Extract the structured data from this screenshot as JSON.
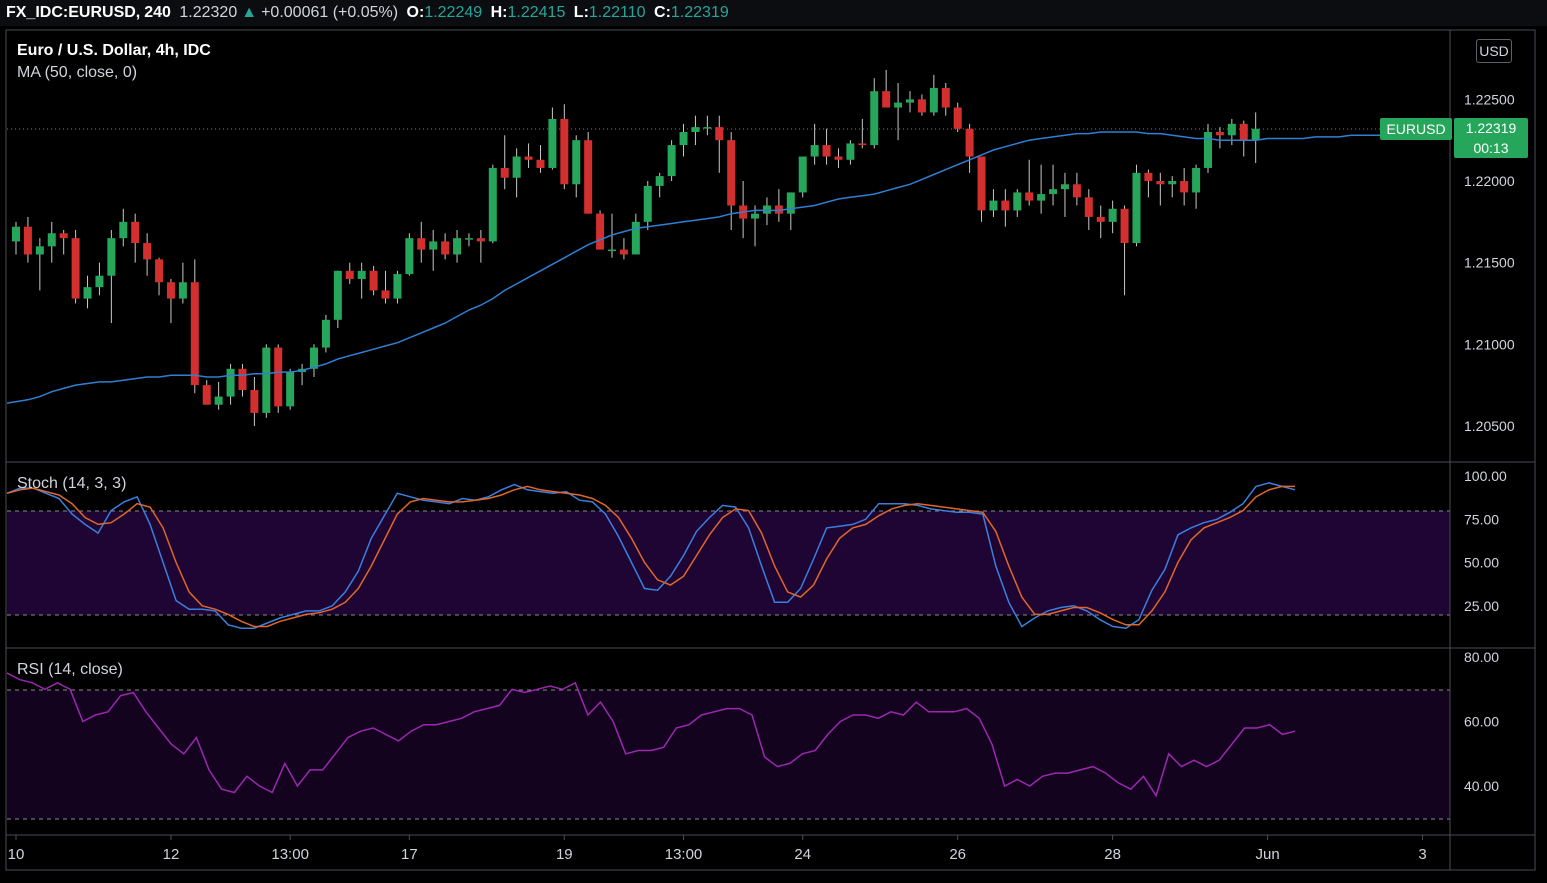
{
  "header": {
    "symbol": "FX_IDC:EURUSD,",
    "interval": "240",
    "last": "1.22320",
    "change_arrow": "▲",
    "change": "+0.00061 (+0.05%)",
    "o_label": "O:",
    "o": "1.22249",
    "h_label": "H:",
    "h": "1.22415",
    "l_label": "L:",
    "l": "1.22110",
    "c_label": "C:",
    "c": "1.22319"
  },
  "legend": {
    "title": "Euro / U.S. Dollar, 4h, IDC",
    "ma": "MA (50, close, 0)",
    "stoch": "Stoch (14, 3, 3)",
    "rsi": "RSI (14, close)"
  },
  "currency_badge": "USD",
  "price_tag": {
    "name": "EURUSD",
    "price": "1.22319",
    "countdown": "00:13"
  },
  "colors": {
    "up": "#26a65a",
    "down": "#d32f2f",
    "ma": "#2f7fd4",
    "stoch_k": "#3a7fe0",
    "stoch_d": "#e0662a",
    "rsi": "#9c27b0",
    "band": "#1f0533"
  },
  "chart_data": [
    {
      "type": "candlestick",
      "title": "Euro / U.S. Dollar, 4h, IDC",
      "ylim": [
        1.2025,
        1.2705
      ],
      "y_ticks": [
        "1.22500",
        "1.22000",
        "1.21500",
        "1.21000",
        "1.20500"
      ],
      "x_ticks": [
        "10",
        "12",
        "13:00",
        "17",
        "19",
        "13:00",
        "24",
        "26",
        "28",
        "Jun",
        "3"
      ],
      "x_tick_index": [
        0,
        13,
        23,
        33,
        46,
        56,
        66,
        79,
        92,
        105,
        118
      ],
      "candles": [
        [
          1.2163,
          1.2175,
          1.2155,
          1.2172
        ],
        [
          1.2172,
          1.2178,
          1.215,
          1.2155
        ],
        [
          1.2155,
          1.2165,
          1.2133,
          1.216
        ],
        [
          1.216,
          1.2175,
          1.215,
          1.2168
        ],
        [
          1.2168,
          1.217,
          1.2155,
          1.2165
        ],
        [
          1.2165,
          1.217,
          1.2125,
          1.2128
        ],
        [
          1.2128,
          1.2142,
          1.2122,
          1.2135
        ],
        [
          1.2135,
          1.215,
          1.213,
          1.2142
        ],
        [
          1.2142,
          1.217,
          1.2113,
          1.2165
        ],
        [
          1.2165,
          1.2183,
          1.216,
          1.2175
        ],
        [
          1.2175,
          1.218,
          1.215,
          1.2162
        ],
        [
          1.2162,
          1.2168,
          1.2142,
          1.2152
        ],
        [
          1.2152,
          1.2153,
          1.213,
          1.2138
        ],
        [
          1.2138,
          1.214,
          1.2113,
          1.2128
        ],
        [
          1.2128,
          1.215,
          1.2125,
          1.2138
        ],
        [
          1.2138,
          1.2152,
          1.207,
          1.2075
        ],
        [
          1.2075,
          1.2078,
          1.2065,
          1.2063
        ],
        [
          1.2063,
          1.2077,
          1.206,
          1.2068
        ],
        [
          1.2068,
          1.2088,
          1.2063,
          1.2085
        ],
        [
          1.2085,
          1.2088,
          1.2068,
          1.2072
        ],
        [
          1.2072,
          1.208,
          1.205,
          1.2058
        ],
        [
          1.2058,
          1.21,
          1.2055,
          1.2098
        ],
        [
          1.2098,
          1.21,
          1.2058,
          1.2062
        ],
        [
          1.2062,
          1.2085,
          1.206,
          1.2083
        ],
        [
          1.2083,
          1.2088,
          1.2075,
          1.2085
        ],
        [
          1.2085,
          1.21,
          1.208,
          1.2098
        ],
        [
          1.2098,
          1.2118,
          1.2095,
          1.2115
        ],
        [
          1.2115,
          1.2145,
          1.211,
          1.2145
        ],
        [
          1.2145,
          1.215,
          1.2137,
          1.214
        ],
        [
          1.214,
          1.215,
          1.2128,
          1.2145
        ],
        [
          1.2145,
          1.2148,
          1.213,
          1.2133
        ],
        [
          1.2133,
          1.2145,
          1.2125,
          1.2128
        ],
        [
          1.2128,
          1.2145,
          1.2125,
          1.2143
        ],
        [
          1.2143,
          1.2168,
          1.2142,
          1.2165
        ],
        [
          1.2165,
          1.2175,
          1.215,
          1.2158
        ],
        [
          1.2158,
          1.217,
          1.2145,
          1.2163
        ],
        [
          1.2163,
          1.2168,
          1.2152,
          1.2155
        ],
        [
          1.2155,
          1.217,
          1.215,
          1.2165
        ],
        [
          1.2165,
          1.2168,
          1.216,
          1.2165
        ],
        [
          1.2165,
          1.217,
          1.215,
          1.2163
        ],
        [
          1.2163,
          1.221,
          1.2162,
          1.2208
        ],
        [
          1.2208,
          1.2228,
          1.2195,
          1.2202
        ],
        [
          1.2202,
          1.222,
          1.219,
          1.2215
        ],
        [
          1.2215,
          1.2223,
          1.2208,
          1.2213
        ],
        [
          1.2213,
          1.2222,
          1.2205,
          1.2208
        ],
        [
          1.2208,
          1.2245,
          1.2207,
          1.2238
        ],
        [
          1.2238,
          1.2247,
          1.2195,
          1.2198
        ],
        [
          1.2198,
          1.2228,
          1.219,
          1.2225
        ],
        [
          1.2225,
          1.223,
          1.218,
          1.218
        ],
        [
          1.218,
          1.2182,
          1.2158,
          1.2158
        ],
        [
          1.2158,
          1.218,
          1.2153,
          1.2158
        ],
        [
          1.2158,
          1.2165,
          1.2152,
          1.2155
        ],
        [
          1.2155,
          1.218,
          1.2155,
          1.2175
        ],
        [
          1.2175,
          1.22,
          1.217,
          1.2197
        ],
        [
          1.2197,
          1.2205,
          1.219,
          1.2203
        ],
        [
          1.2203,
          1.2225,
          1.22,
          1.2222
        ],
        [
          1.2222,
          1.2235,
          1.2215,
          1.223
        ],
        [
          1.223,
          1.224,
          1.2222,
          1.2233
        ],
        [
          1.2233,
          1.224,
          1.2228,
          1.2233
        ],
        [
          1.2233,
          1.224,
          1.2205,
          1.2225
        ],
        [
          1.2225,
          1.223,
          1.217,
          1.2185
        ],
        [
          1.2185,
          1.22,
          1.2165,
          1.2177
        ],
        [
          1.2177,
          1.2185,
          1.216,
          1.218
        ],
        [
          1.218,
          1.219,
          1.2173,
          1.2185
        ],
        [
          1.2185,
          1.2195,
          1.2175,
          1.218
        ],
        [
          1.218,
          1.2193,
          1.217,
          1.2193
        ],
        [
          1.2193,
          1.2215,
          1.219,
          1.2215
        ],
        [
          1.2215,
          1.2235,
          1.221,
          1.2222
        ],
        [
          1.2222,
          1.2232,
          1.221,
          1.2215
        ],
        [
          1.2215,
          1.222,
          1.2208,
          1.2213
        ],
        [
          1.2213,
          1.2225,
          1.221,
          1.2223
        ],
        [
          1.2223,
          1.2238,
          1.222,
          1.2222
        ],
        [
          1.2222,
          1.2263,
          1.222,
          1.2255
        ],
        [
          1.2255,
          1.2268,
          1.2245,
          1.2245
        ],
        [
          1.2245,
          1.226,
          1.2225,
          1.2248
        ],
        [
          1.2248,
          1.2255,
          1.2242,
          1.225
        ],
        [
          1.225,
          1.2253,
          1.224,
          1.2242
        ],
        [
          1.2242,
          1.2265,
          1.224,
          1.2257
        ],
        [
          1.2257,
          1.226,
          1.224,
          1.2245
        ],
        [
          1.2245,
          1.2248,
          1.223,
          1.2232
        ],
        [
          1.2232,
          1.2235,
          1.2205,
          1.2215
        ],
        [
          1.2215,
          1.2215,
          1.2175,
          1.2182
        ],
        [
          1.2182,
          1.2195,
          1.2178,
          1.2188
        ],
        [
          1.2188,
          1.2195,
          1.2172,
          1.2182
        ],
        [
          1.2182,
          1.2195,
          1.2178,
          1.2193
        ],
        [
          1.2193,
          1.2213,
          1.2185,
          1.2188
        ],
        [
          1.2188,
          1.221,
          1.218,
          1.2192
        ],
        [
          1.2192,
          1.221,
          1.2185,
          1.2195
        ],
        [
          1.2195,
          1.2205,
          1.2178,
          1.2198
        ],
        [
          1.2198,
          1.2205,
          1.2185,
          1.219
        ],
        [
          1.219,
          1.2195,
          1.217,
          1.2178
        ],
        [
          1.2178,
          1.2185,
          1.2165,
          1.2175
        ],
        [
          1.2175,
          1.2188,
          1.2168,
          1.2183
        ],
        [
          1.2183,
          1.2185,
          1.213,
          1.2162
        ],
        [
          1.2162,
          1.221,
          1.216,
          1.2205
        ],
        [
          1.2205,
          1.2207,
          1.219,
          1.22
        ],
        [
          1.22,
          1.2205,
          1.2185,
          1.2198
        ],
        [
          1.2198,
          1.2203,
          1.219,
          1.22
        ],
        [
          1.22,
          1.2208,
          1.2185,
          1.2193
        ],
        [
          1.2193,
          1.221,
          1.2183,
          1.2208
        ],
        [
          1.2208,
          1.2235,
          1.2205,
          1.223
        ],
        [
          1.223,
          1.2233,
          1.222,
          1.2228
        ],
        [
          1.2228,
          1.2238,
          1.2222,
          1.2235
        ],
        [
          1.2235,
          1.2237,
          1.2215,
          1.2225
        ],
        [
          1.2225,
          1.2242,
          1.2211,
          1.2232
        ]
      ],
      "ma": [
        1.2064,
        1.2066,
        1.2068,
        1.2071,
        1.2073,
        1.2075,
        1.2076,
        1.2077,
        1.2077,
        1.2078,
        1.2079,
        1.208,
        1.208,
        1.2081,
        1.2081,
        1.2081,
        1.208,
        1.208,
        1.2081,
        1.2081,
        1.2082,
        1.2082,
        1.2083,
        1.2083,
        1.2084,
        1.2086,
        1.2088,
        1.2091,
        1.2093,
        1.2095,
        1.2097,
        1.2099,
        1.2101,
        1.2104,
        1.2107,
        1.211,
        1.2113,
        1.2117,
        1.2121,
        1.2124,
        1.2128,
        1.2133,
        1.2137,
        1.2141,
        1.2145,
        1.2149,
        1.2153,
        1.2157,
        1.2161,
        1.2164,
        1.2167,
        1.2169,
        1.2171,
        1.2172,
        1.2173,
        1.2174,
        1.2175,
        1.2176,
        1.2177,
        1.2178,
        1.218,
        1.2181,
        1.2182,
        1.2182,
        1.2182,
        1.2183,
        1.2184,
        1.2185,
        1.2187,
        1.2189,
        1.219,
        1.2191,
        1.2192,
        1.2194,
        1.2196,
        1.2198,
        1.2201,
        1.2204,
        1.2207,
        1.221,
        1.2213,
        1.2216,
        1.2219,
        1.2221,
        1.2223,
        1.2225,
        1.2226,
        1.2227,
        1.2228,
        1.2229,
        1.2229,
        1.223,
        1.223,
        1.223,
        1.223,
        1.2229,
        1.2229,
        1.2228,
        1.2227,
        1.2226,
        1.2226,
        1.2225,
        1.2225,
        1.2225,
        1.2225,
        1.2226,
        1.2226,
        1.2226,
        1.2226,
        1.2227,
        1.2227,
        1.2227,
        1.2228,
        1.2228,
        1.2228,
        1.2228,
        1.2228
      ],
      "last_price_label": "1.22319"
    },
    {
      "type": "line",
      "title": "Stoch (14, 3, 3)",
      "ylim": [
        0,
        100
      ],
      "y_ticks": [
        "100.00",
        "75.00",
        "50.00",
        "25.00"
      ],
      "bands": [
        20,
        80
      ],
      "series": [
        {
          "name": "",
          "values": [
            90,
            93,
            93,
            90,
            87,
            78,
            72,
            67,
            80,
            85,
            88,
            72,
            50,
            28,
            23,
            23,
            22,
            14,
            12,
            12,
            15,
            18,
            20,
            22,
            22,
            25,
            33,
            45,
            64,
            77,
            90,
            88,
            86,
            85,
            84,
            87,
            86,
            88,
            92,
            95,
            92,
            91,
            90,
            91,
            86,
            85,
            78,
            65,
            50,
            35,
            34,
            42,
            54,
            68,
            76,
            83,
            82,
            70,
            48,
            27,
            27,
            35,
            52,
            70,
            71,
            72,
            75,
            84,
            84,
            84,
            83,
            81,
            80,
            79,
            79,
            78,
            48,
            27,
            13,
            18,
            22,
            24,
            25,
            22,
            17,
            13,
            12,
            17,
            34,
            46,
            66,
            70,
            73,
            75,
            79,
            84,
            94,
            96,
            94,
            92
          ]
        },
        {
          "name": "",
          "values": [
            90,
            92,
            93,
            91,
            89,
            84,
            76,
            72,
            73,
            78,
            84,
            82,
            70,
            50,
            33,
            25,
            23,
            20,
            16,
            13,
            13,
            16,
            18,
            20,
            21,
            23,
            27,
            35,
            48,
            63,
            78,
            85,
            87,
            86,
            85,
            85,
            86,
            87,
            89,
            92,
            94,
            92,
            91,
            90,
            89,
            87,
            83,
            76,
            64,
            50,
            40,
            37,
            42,
            54,
            66,
            76,
            81,
            80,
            67,
            48,
            33,
            30,
            37,
            52,
            64,
            70,
            72,
            77,
            81,
            83,
            84,
            83,
            82,
            81,
            80,
            79,
            68,
            48,
            30,
            20,
            20,
            22,
            24,
            24,
            21,
            17,
            14,
            14,
            22,
            33,
            50,
            63,
            70,
            73,
            76,
            80,
            88,
            92,
            94,
            94
          ]
        }
      ]
    },
    {
      "type": "line",
      "title": "RSI (14, close)",
      "ylim": [
        25,
        80
      ],
      "y_ticks": [
        "80.00",
        "60.00",
        "40.00"
      ],
      "bands": [
        30,
        70
      ],
      "series": [
        {
          "name": "",
          "values": [
            75,
            73,
            72,
            70,
            72,
            70,
            60,
            62,
            63,
            68,
            69,
            63,
            58,
            53,
            50,
            55,
            45,
            39,
            38,
            43,
            40,
            38,
            47,
            40,
            45,
            45,
            50,
            55,
            57,
            58,
            56,
            54,
            57,
            59,
            59,
            60,
            61,
            63,
            64,
            65,
            70,
            69,
            70,
            71,
            70,
            72,
            62,
            66,
            60,
            50,
            51,
            51,
            52,
            58,
            59,
            62,
            63,
            64,
            64,
            62,
            49,
            46,
            47,
            50,
            51,
            56,
            60,
            62,
            62,
            61,
            63,
            62,
            66,
            63,
            63,
            63,
            64,
            61,
            53,
            40,
            42,
            40,
            43,
            44,
            44,
            45,
            46,
            44,
            41,
            39,
            43,
            37,
            50,
            46,
            48,
            46,
            48,
            53,
            58,
            58,
            59,
            56,
            57
          ]
        }
      ]
    }
  ]
}
